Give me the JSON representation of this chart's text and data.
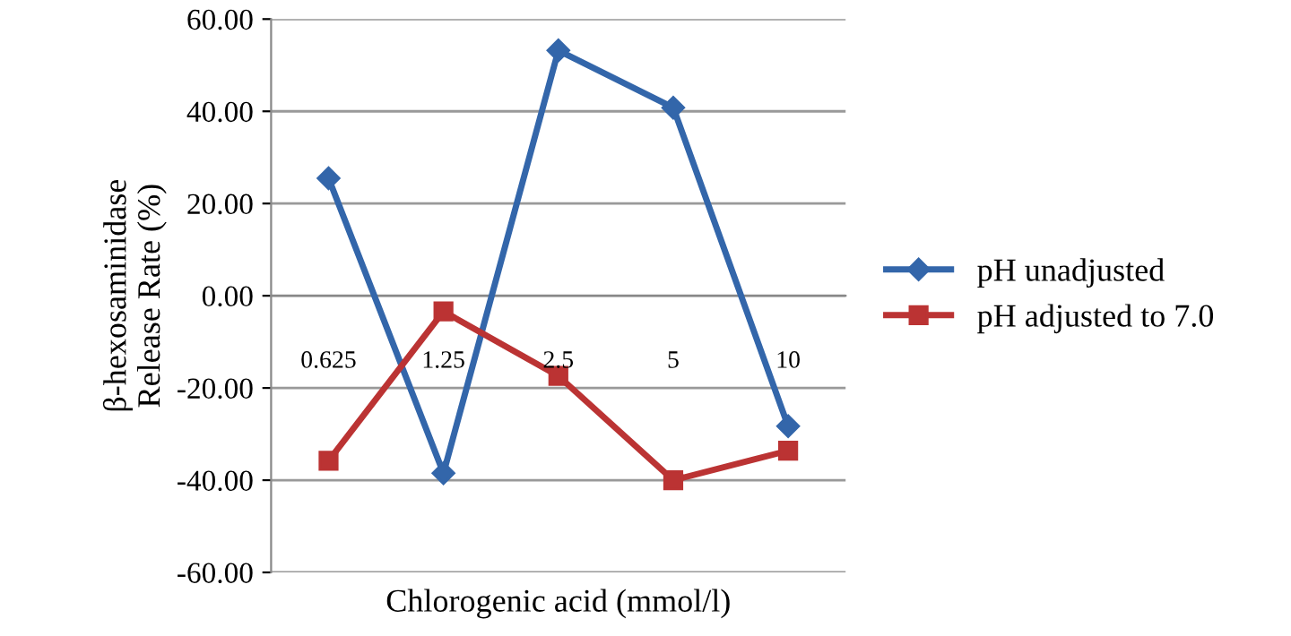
{
  "chart_data": {
    "type": "line",
    "xlabel": "Chlorogenic acid (mmol/l)",
    "ylabel": "β-hexosaminidase\nRelease Rate (%)",
    "categories": [
      "0.625",
      "1.25",
      "2.5",
      "5",
      "10"
    ],
    "series": [
      {
        "name": "pH unadjusted",
        "color": "#3366aa",
        "marker": "diamond",
        "values": [
          25.5,
          -38.5,
          53.2,
          40.8,
          -28.3
        ]
      },
      {
        "name": "pH adjusted to 7.0",
        "color": "#bb3333",
        "marker": "square",
        "values": [
          -35.8,
          -3.4,
          -17.4,
          -40.0,
          -33.6
        ]
      }
    ],
    "ylim": [
      -60,
      60
    ],
    "yticks": [
      {
        "value": -60,
        "label": "-60.00"
      },
      {
        "value": -40,
        "label": "-40.00"
      },
      {
        "value": -20,
        "label": "-20.00"
      },
      {
        "value": 0,
        "label": "0.00"
      },
      {
        "value": 20,
        "label": "20.00"
      },
      {
        "value": 40,
        "label": "40.00"
      },
      {
        "value": 60,
        "label": "60.00"
      }
    ],
    "grid": "y",
    "legend": "right",
    "line_style": "solid"
  }
}
